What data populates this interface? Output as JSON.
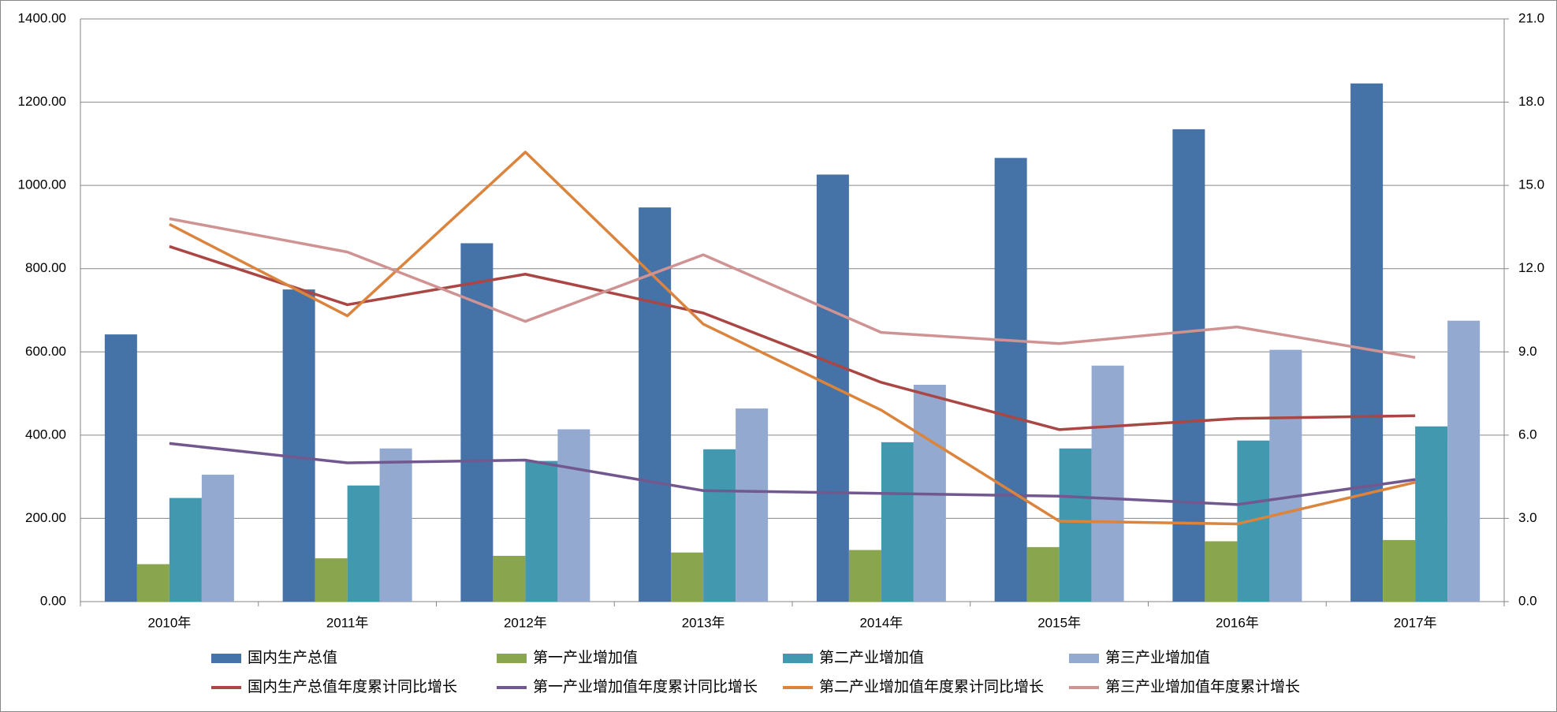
{
  "chart_data": {
    "type": "bar",
    "categories": [
      "2010年",
      "2011年",
      "2012年",
      "2013年",
      "2014年",
      "2015年",
      "2016年",
      "2017年"
    ],
    "series": [
      {
        "name": "国内生产总值",
        "kind": "bar",
        "color": "#4572a7",
        "values": [
          642,
          750,
          861,
          947,
          1026,
          1066,
          1135,
          1245
        ]
      },
      {
        "name": "第一产业增加值",
        "kind": "bar",
        "color": "#89a54e",
        "values": [
          90,
          104,
          110,
          118,
          124,
          131,
          145,
          148
        ]
      },
      {
        "name": "第二产业增加值",
        "kind": "bar",
        "color": "#4198af",
        "values": [
          249,
          279,
          338,
          366,
          383,
          368,
          387,
          421
        ]
      },
      {
        "name": "第三产业增加值",
        "kind": "bar",
        "color": "#93a9cf",
        "values": [
          305,
          368,
          414,
          464,
          521,
          567,
          605,
          675
        ]
      },
      {
        "name": "国内生产总值年度累计同比增长",
        "kind": "line",
        "axis": "y2",
        "color": "#aa4643",
        "values": [
          12.8,
          10.7,
          11.8,
          10.4,
          7.9,
          6.2,
          6.6,
          6.7
        ]
      },
      {
        "name": "第一产业增加值年度累计同比增长",
        "kind": "line",
        "axis": "y2",
        "color": "#71588f",
        "values": [
          5.7,
          5.0,
          5.1,
          4.0,
          3.9,
          3.8,
          3.5,
          4.4
        ]
      },
      {
        "name": "第二产业增加值年度累计同比增长",
        "kind": "line",
        "axis": "y2",
        "color": "#db843d",
        "values": [
          13.6,
          10.3,
          16.2,
          10.0,
          6.9,
          2.9,
          2.8,
          4.3
        ]
      },
      {
        "name": "第三产业增加值年度累计增长",
        "kind": "line",
        "axis": "y2",
        "color": "#d09393",
        "values": [
          13.8,
          12.6,
          10.1,
          12.5,
          9.7,
          9.3,
          9.9,
          8.8
        ]
      }
    ],
    "ylim": [
      0,
      1400
    ],
    "yticks": [
      {
        "value": 0,
        "label": "0.00"
      },
      {
        "value": 200,
        "label": "200.00"
      },
      {
        "value": 400,
        "label": "400.00"
      },
      {
        "value": 600,
        "label": "600.00"
      },
      {
        "value": 800,
        "label": "800.00"
      },
      {
        "value": 1000,
        "label": "1000.00"
      },
      {
        "value": 1200,
        "label": "1200.00"
      },
      {
        "value": 1400,
        "label": "1400.00"
      }
    ],
    "y2lim": [
      0,
      21
    ],
    "y2ticks": [
      {
        "value": 0,
        "label": "0.0"
      },
      {
        "value": 3,
        "label": "3.0"
      },
      {
        "value": 6,
        "label": "6.0"
      },
      {
        "value": 9,
        "label": "9.0"
      },
      {
        "value": 12,
        "label": "12.0"
      },
      {
        "value": 15,
        "label": "15.0"
      },
      {
        "value": 18,
        "label": "18.0"
      },
      {
        "value": 21,
        "label": "21.0"
      }
    ],
    "grid": true,
    "legend": "bottom"
  }
}
